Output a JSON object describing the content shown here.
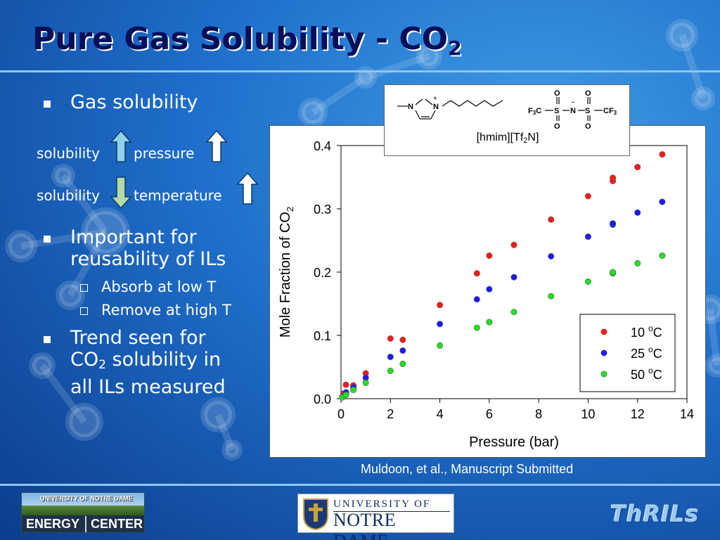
{
  "slide": {
    "title": "Pure Gas Solubility - CO",
    "title_sub": "2",
    "bullets": [
      {
        "text": "Gas solubility"
      },
      {
        "text": "Important for reusability of ILs"
      },
      {
        "text_a": "Trend seen for",
        "text_b": "CO",
        "text_sub": "2",
        "text_c": " solubility in",
        "text_d": "all ILs measured"
      }
    ],
    "sub_bullets": [
      "Absorb at low T",
      "Remove at high T"
    ],
    "relations": [
      {
        "left": "solubility",
        "left_dir": "up",
        "right": "pressure",
        "right_dir": "up"
      },
      {
        "left": "solubility",
        "left_dir": "down",
        "right": "temperature",
        "right_dir": "up"
      }
    ],
    "structure": {
      "label_main": "[hmim][Tf",
      "label_sub": "2",
      "label_end": "N]",
      "atoms": {
        "n": "N",
        "plus": "+",
        "o": "O",
        "s": "S",
        "minus": "−",
        "f3c": "F",
        "f3c_sub": "3",
        "f3c_c": "C",
        "cf3_c": "CF",
        "cf3_sub": "3"
      }
    },
    "citation": "Muldoon, et al., Manuscript Submitted",
    "logos": {
      "energy_top": "UNIVERSITY OF NOTRE DAME",
      "energy_left": "ENERGY",
      "energy_right": "CENTER",
      "nd_line1": "UNIVERSITY OF",
      "nd_line2": "NOTRE DAME",
      "thrils": "ThRILs"
    }
  },
  "chart_data": {
    "type": "scatter",
    "title": "",
    "xlabel": "Pressure (bar)",
    "ylabel_main": "Mole Fraction of CO",
    "ylabel_sub": "2",
    "xlim": [
      0,
      14
    ],
    "ylim": [
      0,
      0.4
    ],
    "xticks": [
      "0",
      "2",
      "4",
      "6",
      "8",
      "10",
      "12",
      "14"
    ],
    "xtick_values": [
      0,
      2,
      4,
      6,
      8,
      10,
      12,
      14
    ],
    "yticks": [
      "0.0",
      "0.1",
      "0.2",
      "0.3",
      "0.4"
    ],
    "ytick_values": [
      0,
      0.1,
      0.2,
      0.3,
      0.4
    ],
    "grid": false,
    "legend_position": "bottom-right",
    "legend_units": "C",
    "legend_degree": "o",
    "series": [
      {
        "name": "10",
        "color": "#ff1a1a",
        "x": [
          0.1,
          0.2,
          0.5,
          1.0,
          2.0,
          2.5,
          4.0,
          5.5,
          6.0,
          7.0,
          8.5,
          10.0,
          11.0,
          11.0,
          12.0,
          13.0
        ],
        "y": [
          0.008,
          0.022,
          0.021,
          0.04,
          0.095,
          0.093,
          0.148,
          0.198,
          0.226,
          0.243,
          0.283,
          0.32,
          0.344,
          0.349,
          0.366,
          0.386
        ]
      },
      {
        "name": "25",
        "color": "#1a1aff",
        "x": [
          0.05,
          0.2,
          0.5,
          1.0,
          2.0,
          2.5,
          4.0,
          5.5,
          6.0,
          7.0,
          8.5,
          10.0,
          11.0,
          11.0,
          12.0,
          13.0
        ],
        "y": [
          0.003,
          0.01,
          0.018,
          0.033,
          0.066,
          0.076,
          0.118,
          0.157,
          0.173,
          0.192,
          0.225,
          0.256,
          0.275,
          0.277,
          0.294,
          0.311
        ]
      },
      {
        "name": "50",
        "color": "#22e022",
        "x": [
          0.05,
          0.2,
          0.5,
          1.0,
          2.0,
          2.5,
          4.0,
          5.5,
          6.0,
          7.0,
          8.5,
          10.0,
          11.0,
          11.0,
          12.0,
          13.0
        ],
        "y": [
          0.002,
          0.006,
          0.014,
          0.025,
          0.044,
          0.055,
          0.084,
          0.112,
          0.121,
          0.137,
          0.162,
          0.185,
          0.198,
          0.2,
          0.214,
          0.226
        ]
      }
    ]
  }
}
